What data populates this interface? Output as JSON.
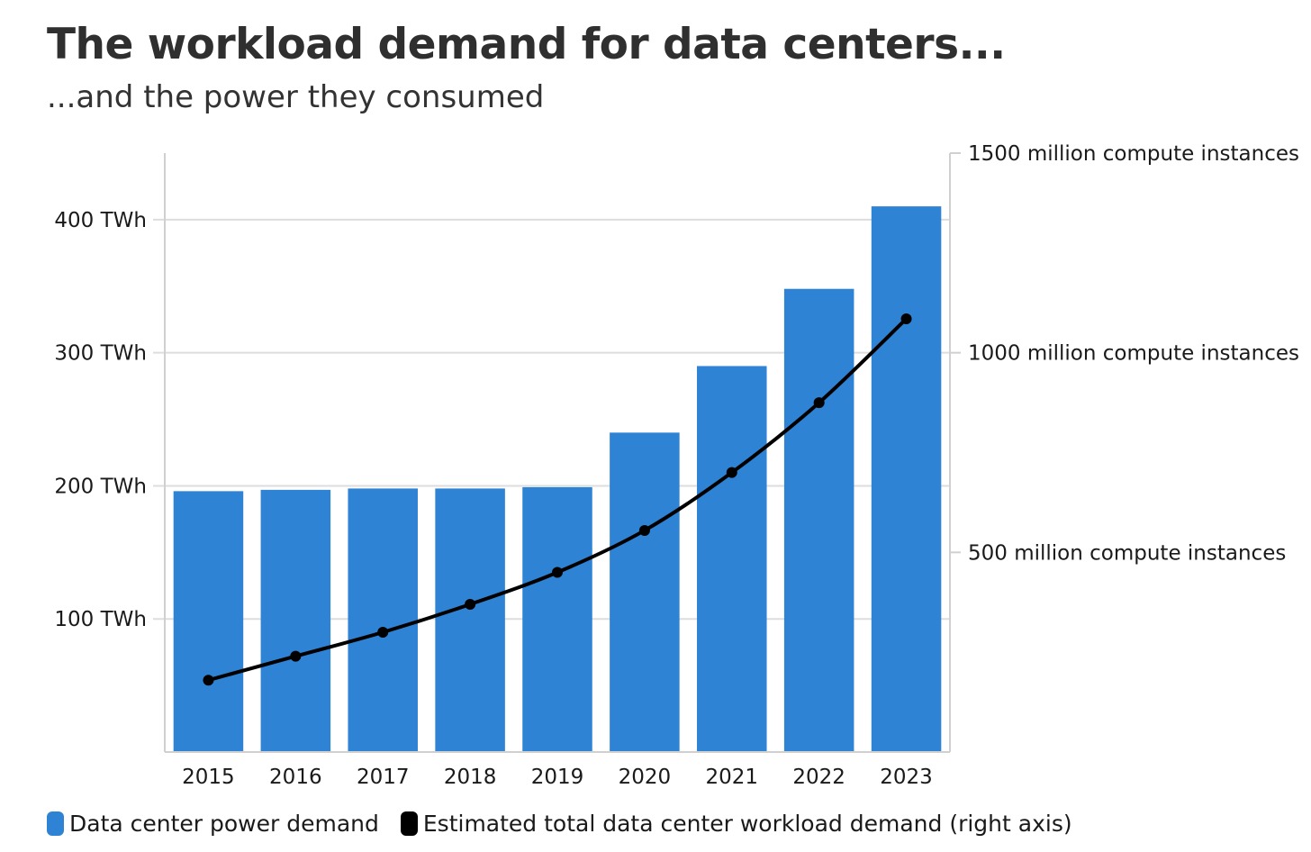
{
  "title": "The workload demand for data centers...",
  "subtitle": "...and the power they consumed",
  "colors": {
    "bar": "#2e83d5",
    "line": "#000000",
    "grid": "#dddddd",
    "axis": "#d0d0d0"
  },
  "chart_data": {
    "type": "bar",
    "title": "The workload demand for data centers...",
    "subtitle": "...and the power they consumed",
    "categories": [
      "2015",
      "2016",
      "2017",
      "2018",
      "2019",
      "2020",
      "2021",
      "2022",
      "2023"
    ],
    "series": [
      {
        "name": "Data center power demand",
        "type": "bar",
        "axis": "left",
        "values": [
          196,
          197,
          198,
          198,
          199,
          240,
          290,
          348,
          410
        ]
      },
      {
        "name": "Estimated total data center workload demand (right axis)",
        "type": "line",
        "axis": "right",
        "values": [
          180,
          240,
          300,
          370,
          450,
          555,
          700,
          875,
          1085
        ]
      }
    ],
    "y_left": {
      "ylim": [
        0,
        450
      ],
      "ticks": [
        100,
        200,
        300,
        400
      ],
      "tick_labels": [
        "100 TWh",
        "200 TWh",
        "300 TWh",
        "400 TWh"
      ]
    },
    "y_right": {
      "ylim": [
        0,
        1500
      ],
      "ticks": [
        500,
        1000,
        1500
      ],
      "tick_labels": [
        "500 million compute instances",
        "1000 million compute instances",
        "1500 million compute instances"
      ]
    },
    "grid": true,
    "legend_position": "bottom-left"
  },
  "legend": {
    "items": [
      {
        "label": "Data center power demand",
        "color": "#2e83d5"
      },
      {
        "label": "Estimated total data center workload demand (right axis)",
        "color": "#000000"
      }
    ]
  }
}
